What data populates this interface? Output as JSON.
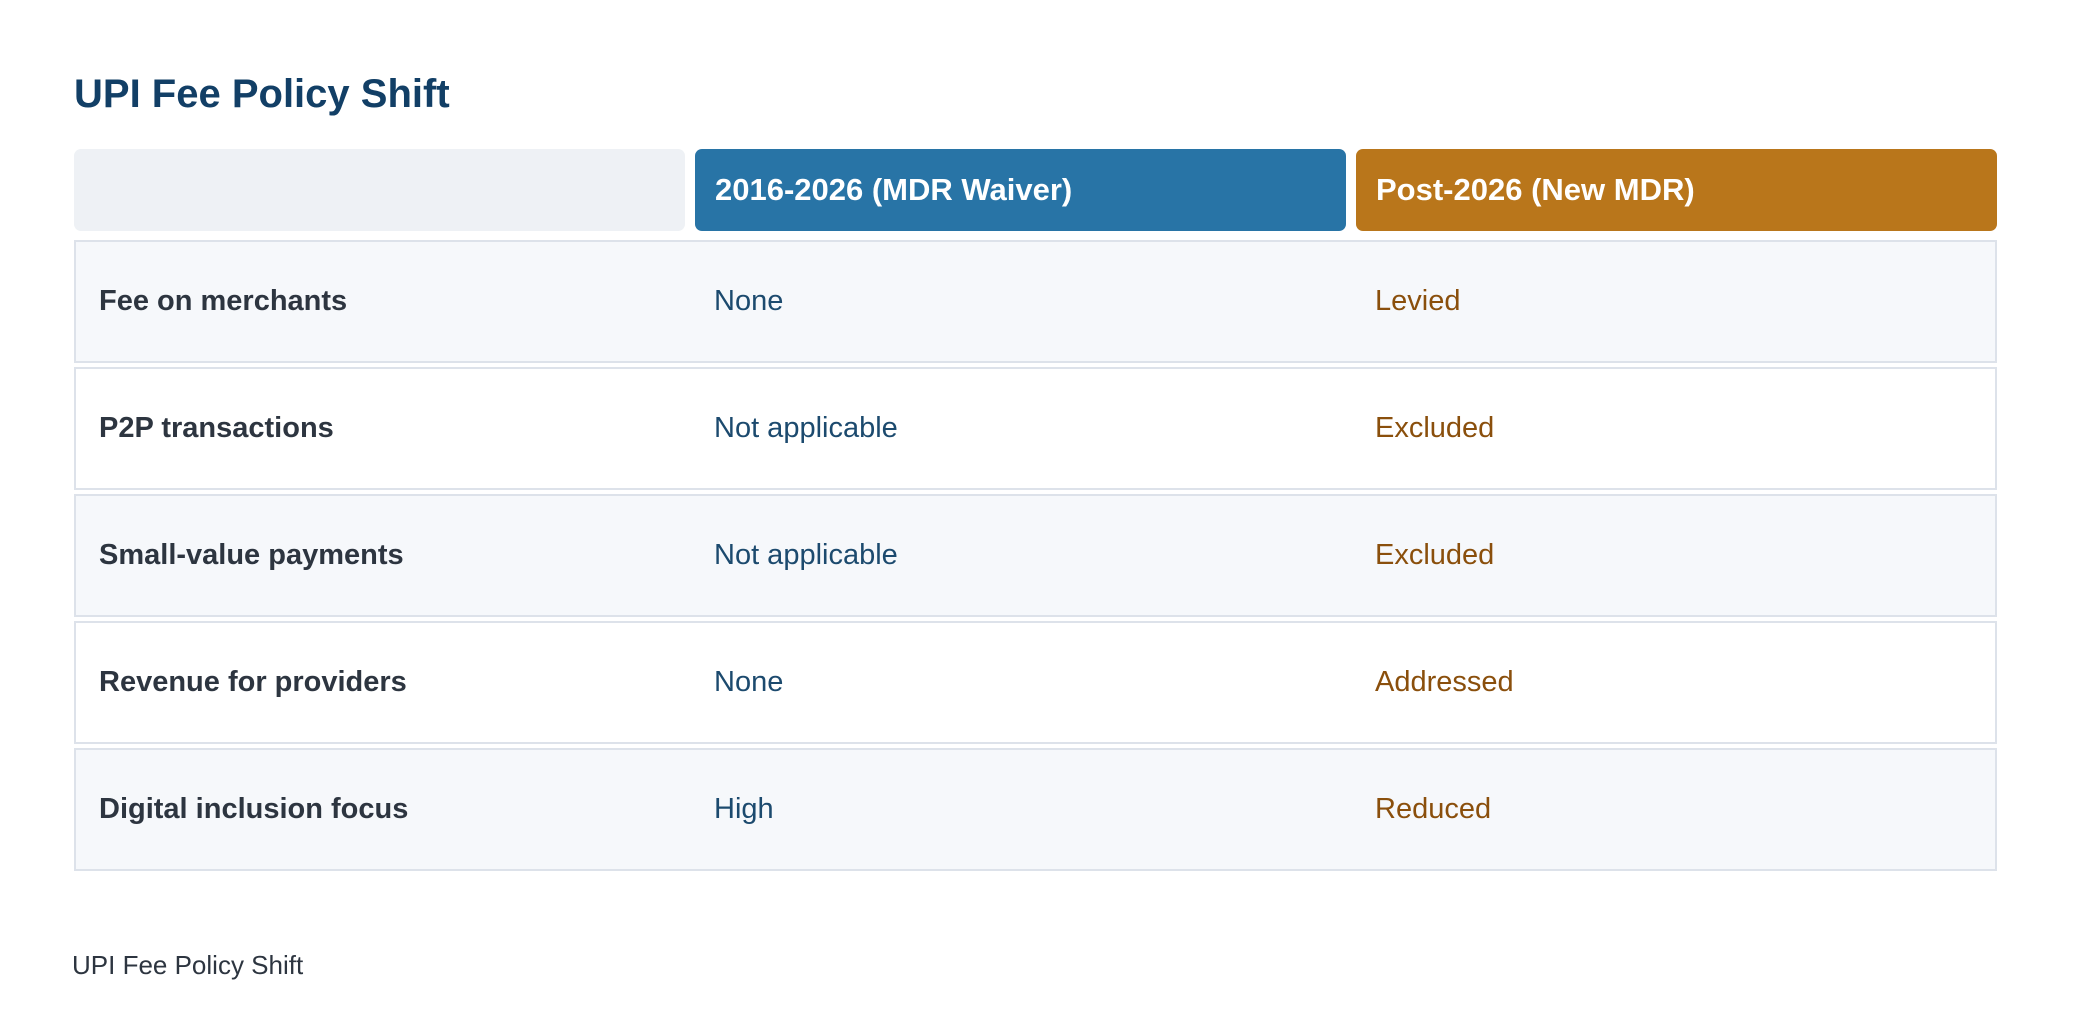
{
  "title": "UPI Fee Policy Shift",
  "table": {
    "columns": [
      "2016-2026 (MDR Waiver)",
      "Post-2026 (New MDR)"
    ],
    "rows": [
      [
        "Fee on merchants",
        "None",
        "Levied"
      ],
      [
        "P2P transactions",
        "Not applicable",
        "Excluded"
      ],
      [
        "Small-value payments",
        "Not applicable",
        "Excluded"
      ],
      [
        "Revenue for providers",
        "None",
        "Addressed"
      ],
      [
        "Digital inclusion focus",
        "High",
        "Reduced"
      ]
    ]
  },
  "caption": "UPI Fee Policy Shift"
}
